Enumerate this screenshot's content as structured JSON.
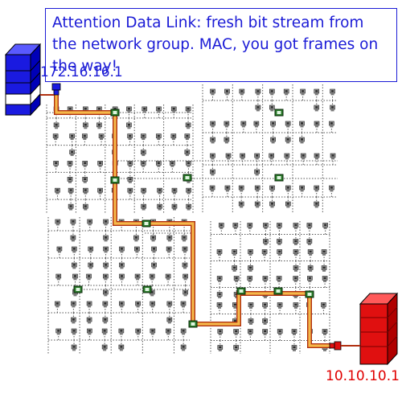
{
  "callout": {
    "text": "Attention Data Link: fresh bit stream from the network group. MAC, you got frames on the way!",
    "color": "#1b1bd6"
  },
  "source": {
    "ip": "172.16.16.1",
    "color": "#1a1ae0"
  },
  "destination": {
    "ip": "10.10.10.1",
    "color": "#e01010"
  },
  "route": {
    "color": "#f2a020",
    "border": "#b03010",
    "switch_color": "#2a7a2a",
    "switch_border": "#0a2a0a"
  },
  "icons": [
    "server-stack-icon",
    "server-stack-icon",
    "network-adapter-icon",
    "workstation-icon",
    "switch-node-icon"
  ]
}
